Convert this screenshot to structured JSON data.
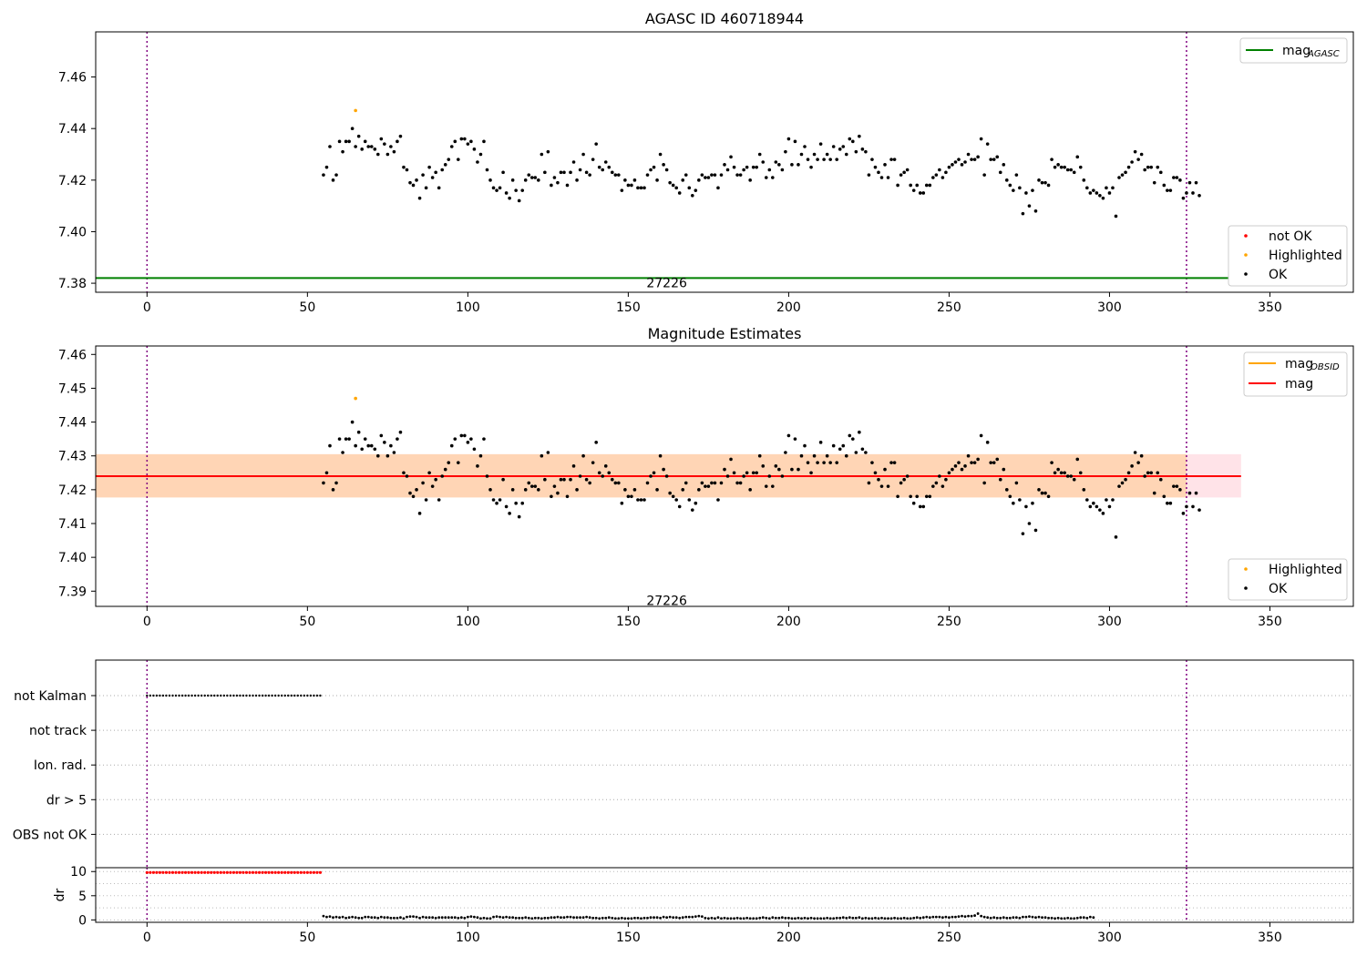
{
  "chart_data": [
    {
      "type": "scatter",
      "title": "AGASC ID 460718944",
      "xlabel": "",
      "ylabel": "",
      "xlim": [
        -16,
        376
      ],
      "ylim": [
        7.3765,
        7.4775
      ],
      "xticks": [
        0,
        50,
        100,
        150,
        200,
        250,
        300,
        350
      ],
      "yticks": [
        7.38,
        7.4,
        7.42,
        7.44,
        7.46
      ],
      "ytick_labels": [
        "7.38",
        "7.40",
        "7.42",
        "7.44",
        "7.46"
      ],
      "grid": false,
      "vlines": [
        0,
        324
      ],
      "hline": {
        "name": "mag",
        "name_sub": "AGASC",
        "y": 7.382,
        "color": "#008000"
      },
      "annotation": {
        "text": "27226",
        "x": 162,
        "y": 7.3805
      },
      "legends": [
        {
          "position": "top-right",
          "entries": [
            {
              "label": "mag",
              "sub": "AGASC",
              "color": "#008000",
              "kind": "line"
            }
          ]
        },
        {
          "position": "bottom-right",
          "entries": [
            {
              "label": "not OK",
              "color": "#ff0000",
              "kind": "dot"
            },
            {
              "label": "Highlighted",
              "color": "#ffa500",
              "kind": "dot"
            },
            {
              "label": "OK",
              "color": "#000000",
              "kind": "dot"
            }
          ]
        }
      ],
      "highlighted": [
        {
          "x": 65,
          "y": 7.447
        }
      ],
      "series_ok_y": [
        7.422,
        7.425,
        7.433,
        7.42,
        7.422,
        7.435,
        7.431,
        7.435,
        7.435,
        7.44,
        7.433,
        7.437,
        7.432,
        7.435,
        7.433,
        7.433,
        7.432,
        7.43,
        7.436,
        7.434,
        7.43,
        7.433,
        7.431,
        7.435,
        7.437,
        7.425,
        7.424,
        7.419,
        7.418,
        7.42,
        7.413,
        7.422,
        7.417,
        7.425,
        7.421,
        7.423,
        7.417,
        7.424,
        7.426,
        7.428,
        7.433,
        7.435,
        7.428,
        7.436,
        7.436,
        7.434,
        7.435,
        7.432,
        7.427,
        7.43,
        7.435,
        7.424,
        7.42,
        7.417,
        7.416,
        7.417,
        7.423,
        7.415,
        7.413,
        7.42,
        7.416,
        7.412,
        7.416,
        7.42,
        7.422,
        7.421,
        7.421,
        7.42,
        7.43,
        7.423,
        7.431,
        7.418,
        7.421,
        7.419,
        7.423,
        7.423,
        7.418,
        7.423,
        7.427,
        7.42,
        7.424,
        7.43,
        7.423,
        7.422,
        7.428,
        7.434,
        7.425,
        7.424,
        7.427,
        7.425,
        7.423,
        7.422,
        7.422,
        7.416,
        7.42,
        7.418,
        7.418,
        7.42,
        7.417,
        7.417,
        7.417,
        7.422,
        7.424,
        7.425,
        7.42,
        7.43,
        7.426,
        7.424,
        7.419,
        7.418,
        7.417,
        7.415,
        7.42,
        7.422,
        7.417,
        7.414,
        7.416,
        7.42,
        7.422,
        7.421,
        7.421,
        7.422,
        7.422,
        7.417,
        7.422,
        7.426,
        7.424,
        7.429,
        7.425,
        7.422,
        7.422,
        7.424,
        7.425,
        7.42,
        7.425,
        7.425,
        7.43,
        7.427,
        7.421,
        7.424,
        7.421,
        7.427,
        7.426,
        7.424,
        7.431,
        7.436,
        7.426,
        7.435,
        7.426,
        7.43,
        7.433,
        7.428,
        7.425,
        7.43,
        7.428,
        7.434,
        7.428,
        7.43,
        7.428,
        7.433,
        7.428,
        7.432,
        7.433,
        7.43,
        7.436,
        7.435,
        7.431,
        7.437,
        7.432,
        7.431,
        7.422,
        7.428,
        7.425,
        7.423,
        7.421,
        7.426,
        7.421,
        7.428,
        7.428,
        7.418,
        7.422,
        7.423,
        7.424,
        7.418,
        7.416,
        7.418,
        7.415,
        7.415,
        7.418,
        7.418,
        7.421,
        7.422,
        7.424,
        7.421,
        7.423,
        7.425,
        7.426,
        7.427,
        7.428,
        7.426,
        7.427,
        7.43,
        7.428,
        7.428,
        7.429,
        7.436,
        7.422,
        7.434,
        7.428,
        7.428,
        7.429,
        7.423,
        7.426,
        7.42,
        7.418,
        7.416,
        7.422,
        7.417,
        7.407,
        7.415,
        7.41,
        7.416,
        7.408,
        7.42,
        7.419,
        7.419,
        7.418,
        7.428,
        7.425,
        7.426,
        7.425,
        7.425,
        7.424,
        7.424,
        7.423,
        7.429,
        7.425,
        7.42,
        7.417,
        7.415,
        7.416,
        7.415,
        7.414,
        7.413,
        7.417,
        7.415,
        7.417,
        7.406,
        7.421,
        7.422,
        7.423,
        7.425,
        7.427,
        7.431,
        7.428,
        7.43,
        7.424,
        7.425,
        7.425,
        7.419,
        7.425,
        7.423,
        7.418,
        7.416,
        7.416,
        7.421,
        7.421,
        7.42,
        7.413,
        7.415,
        7.419,
        7.415,
        7.419,
        7.414
      ]
    },
    {
      "type": "scatter",
      "title": "Magnitude Estimates",
      "xlabel": "",
      "ylabel": "",
      "xlim": [
        -16,
        376
      ],
      "ylim": [
        7.3855,
        7.4625
      ],
      "xticks": [
        0,
        50,
        100,
        150,
        200,
        250,
        300,
        350
      ],
      "yticks": [
        7.39,
        7.4,
        7.41,
        7.42,
        7.43,
        7.44,
        7.45,
        7.46
      ],
      "ytick_labels": [
        "7.39",
        "7.40",
        "7.41",
        "7.42",
        "7.43",
        "7.44",
        "7.45",
        "7.46"
      ],
      "grid": false,
      "vlines": [
        0,
        324
      ],
      "mag_line": {
        "name": "mag",
        "y": 7.424,
        "color": "#ff0000"
      },
      "mag_band": {
        "low": 7.4177,
        "high": 7.4305,
        "color": "#ffc0cb"
      },
      "mag_obsid_band": {
        "name": "mag",
        "name_sub": "OBSID",
        "x_start": -16,
        "x_end": 324,
        "low": 7.4177,
        "high": 7.4305,
        "color": "#ffa500"
      },
      "annotation": {
        "text": "27226",
        "x": 162,
        "y": 7.3875
      },
      "legends": [
        {
          "position": "top-right",
          "entries": [
            {
              "label": "mag",
              "sub": "OBSID",
              "color": "#ffa500",
              "kind": "line"
            },
            {
              "label": "mag",
              "color": "#ff0000",
              "kind": "line"
            }
          ]
        },
        {
          "position": "bottom-right",
          "entries": [
            {
              "label": "Highlighted",
              "color": "#ffa500",
              "kind": "dot"
            },
            {
              "label": "OK",
              "color": "#000000",
              "kind": "dot"
            }
          ]
        }
      ],
      "highlighted": [
        {
          "x": 65,
          "y": 7.447
        }
      ]
    },
    {
      "type": "scatter",
      "title": "",
      "xlim": [
        -16,
        376
      ],
      "xticks": [
        0,
        50,
        100,
        150,
        200,
        250,
        300,
        350
      ],
      "vlines": [
        0,
        324
      ],
      "flag_categories": [
        "not Kalman",
        "not track",
        "Ion. rad.",
        "dr > 5",
        "OBS not OK"
      ],
      "flag_not_kalman_x_range": [
        0,
        54.5
      ],
      "dr": {
        "ylabel": "dr",
        "ylim": [
          -0.5,
          10.8
        ],
        "yticks": [
          0,
          5,
          10
        ],
        "ytick_labels": [
          "0",
          "5",
          "10"
        ],
        "high_value": 9.8,
        "high_x_range": [
          0,
          54.5
        ],
        "low_values_x_range": [
          55,
          324
        ],
        "low_values": [
          0.8,
          0.6,
          0.7,
          0.5,
          0.6,
          0.5,
          0.6,
          0.4,
          0.5,
          0.6,
          0.5,
          0.4,
          0.4,
          0.6,
          0.6,
          0.5,
          0.5,
          0.4,
          0.6,
          0.5,
          0.5,
          0.4,
          0.4,
          0.4,
          0.5,
          0.3,
          0.6,
          0.7,
          0.7,
          0.6,
          0.4,
          0.6,
          0.5,
          0.5,
          0.5,
          0.4,
          0.5,
          0.5,
          0.5,
          0.5,
          0.5,
          0.5,
          0.4,
          0.5,
          0.4,
          0.6,
          0.7,
          0.6,
          0.5,
          0.3,
          0.4,
          0.3,
          0.3,
          0.6,
          0.7,
          0.6,
          0.5,
          0.6,
          0.5,
          0.5,
          0.4,
          0.4,
          0.4,
          0.5,
          0.4,
          0.3,
          0.4,
          0.4,
          0.3,
          0.4,
          0.4,
          0.5,
          0.5,
          0.6,
          0.5,
          0.5,
          0.6,
          0.6,
          0.5,
          0.5,
          0.5,
          0.5,
          0.6,
          0.5,
          0.4,
          0.4,
          0.3,
          0.4,
          0.4,
          0.5,
          0.4,
          0.3,
          0.3,
          0.4,
          0.3,
          0.3,
          0.3,
          0.4,
          0.4,
          0.3,
          0.4,
          0.4,
          0.5,
          0.5,
          0.5,
          0.4,
          0.6,
          0.5,
          0.6,
          0.5,
          0.5,
          0.4,
          0.5,
          0.6,
          0.6,
          0.6,
          0.7,
          0.8,
          0.7,
          0.4,
          0.3,
          0.4,
          0.3,
          0.5,
          0.3,
          0.4,
          0.3,
          0.3,
          0.3,
          0.4,
          0.3,
          0.3,
          0.4,
          0.3,
          0.3,
          0.3,
          0.4,
          0.5,
          0.4,
          0.3,
          0.5,
          0.4,
          0.4,
          0.5,
          0.4,
          0.4,
          0.3,
          0.3,
          0.4,
          0.3,
          0.4,
          0.3,
          0.4,
          0.3,
          0.3,
          0.3,
          0.3,
          0.4,
          0.3,
          0.3,
          0.4,
          0.4,
          0.5,
          0.4,
          0.5,
          0.4,
          0.4,
          0.5,
          0.3,
          0.4,
          0.3,
          0.3,
          0.4,
          0.3,
          0.4,
          0.3,
          0.3,
          0.3,
          0.4,
          0.3,
          0.3,
          0.4,
          0.3,
          0.3,
          0.4,
          0.5,
          0.4,
          0.5,
          0.6,
          0.5,
          0.6,
          0.6,
          0.6,
          0.5,
          0.6,
          0.5,
          0.6,
          0.6,
          0.7,
          0.8,
          0.7,
          0.8,
          0.8,
          0.9,
          1.3,
          0.8,
          0.6,
          0.5,
          0.4,
          0.5,
          0.4,
          0.4,
          0.5,
          0.4,
          0.4,
          0.5,
          0.5,
          0.4,
          0.6,
          0.6,
          0.7,
          0.6,
          0.5,
          0.6,
          0.5,
          0.5,
          0.4,
          0.4,
          0.3,
          0.4,
          0.3,
          0.3,
          0.4,
          0.3,
          0.3,
          0.4,
          0.5,
          0.5,
          0.4,
          0.6,
          0.5
        ]
      }
    }
  ]
}
